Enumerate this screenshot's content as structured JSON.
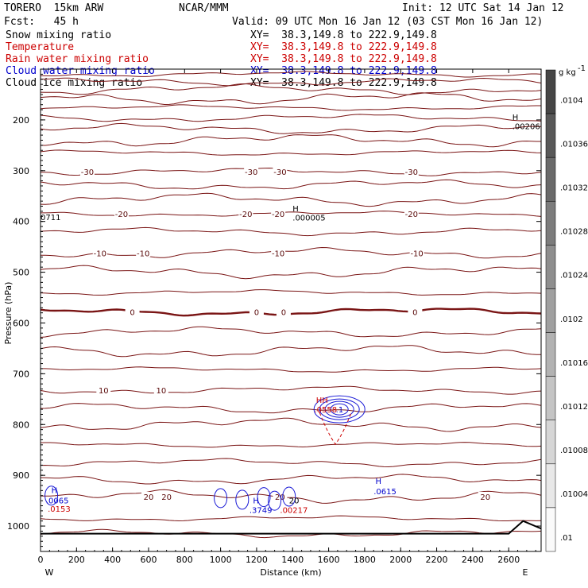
{
  "header": {
    "model": "TORERO  15km ARW",
    "org": "NCAR/MMM",
    "init": "Init: 12 UTC Sat 14 Jan 12",
    "fcst": "Fcst:   45 h",
    "valid": "Valid: 09 UTC Mon 16 Jan 12 (03 CST Mon 16 Jan 12)"
  },
  "fields": [
    {
      "name": "Snow mixing ratio",
      "xy": "XY=  38.3,149.8 to 222.9,149.8",
      "color": "#000000"
    },
    {
      "name": "Temperature",
      "xy": "XY=  38.3,149.8 to 222.9,149.8",
      "color": "#cc0000"
    },
    {
      "name": "Rain water mixing ratio",
      "xy": "XY=  38.3,149.8 to 222.9,149.8",
      "color": "#cc0000"
    },
    {
      "name": "Cloud water mixing ratio",
      "xy": "XY=  38.3,149.8 to 222.9,149.8",
      "color": "#0000cc"
    },
    {
      "name": "Cloud ice mixing ratio",
      "xy": "XY=  38.3,149.8 to 222.9,149.8",
      "color": "#000000"
    }
  ],
  "chart_data": {
    "type": "contour-cross-section",
    "xlabel": "Distance (km)",
    "ylabel": "Pressure (hPa)",
    "xlim": [
      0,
      2780
    ],
    "ylim": [
      1050,
      100
    ],
    "x_ticks": [
      0,
      200,
      400,
      600,
      800,
      1000,
      1200,
      1400,
      1600,
      1800,
      2000,
      2200,
      2400,
      2600
    ],
    "y_ticks": [
      200,
      300,
      400,
      500,
      600,
      700,
      800,
      900,
      1000
    ],
    "end_labels": {
      "left": "W",
      "right": "E"
    },
    "colorbar": {
      "unit": "g kg",
      "unit_exp": "-1",
      "labels": [
        ".0104",
        ".01036",
        ".01032",
        ".01028",
        ".01024",
        ".0102",
        ".01016",
        ".01012",
        ".01008",
        ".01004",
        ".01"
      ]
    },
    "temperature_isotherms": [
      {
        "value": -30,
        "labels_km": [
          260,
          1170,
          1330,
          2060
        ],
        "pressure": 302
      },
      {
        "value": -20,
        "labels_km": [
          450,
          1140,
          1320,
          2060
        ],
        "pressure": 385
      },
      {
        "value": -10,
        "labels_km": [
          330,
          570,
          1320,
          2090
        ],
        "pressure": 462
      },
      {
        "value": 0,
        "labels_km": [
          510,
          1200,
          1350,
          2080
        ],
        "pressure": 578
      },
      {
        "value": 10,
        "labels_km": [
          350,
          670
        ],
        "pressure": 732
      },
      {
        "value": 20,
        "labels_km": [
          600,
          700,
          1330,
          2470
        ],
        "pressure": 942
      }
    ],
    "annotations": [
      {
        "text": "H",
        "km": 2620,
        "pressure": 200,
        "color": "#000000"
      },
      {
        "text": ".00206",
        "km": 2620,
        "pressure": 218,
        "color": "#000000"
      },
      {
        "text": "H",
        "km": 1400,
        "pressure": 380,
        "color": "#000000"
      },
      {
        "text": ".000005",
        "km": 1400,
        "pressure": 398,
        "color": "#000000"
      },
      {
        "text": "0711",
        "km": 0,
        "pressure": 397,
        "color": "#000000"
      },
      {
        "text": "HH",
        "km": 1530,
        "pressure": 757,
        "color": "#cc0000"
      },
      {
        "text": ".0558",
        "km": 1520,
        "pressure": 776,
        "color": "#cc0000"
      },
      {
        "text": ".1",
        "km": 1640,
        "pressure": 776,
        "color": "#0000cc"
      },
      {
        "text": "H",
        "km": 60,
        "pressure": 935,
        "color": "#0000cc"
      },
      {
        "text": ".0065",
        "km": 30,
        "pressure": 955,
        "color": "#0000cc"
      },
      {
        "text": ".0153",
        "km": 40,
        "pressure": 972,
        "color": "#cc0000"
      },
      {
        "text": "H",
        "km": 1860,
        "pressure": 917,
        "color": "#0000cc"
      },
      {
        "text": ".0615",
        "km": 1850,
        "pressure": 937,
        "color": "#0000cc"
      },
      {
        "text": "H",
        "km": 1180,
        "pressure": 955,
        "color": "#0000cc"
      },
      {
        "text": ".3749",
        "km": 1160,
        "pressure": 974,
        "color": "#0000cc"
      },
      {
        "text": ".00217",
        "km": 1330,
        "pressure": 974,
        "color": "#cc0000"
      },
      {
        "text": "20",
        "km": 1380,
        "pressure": 955,
        "color": "#000000"
      }
    ]
  }
}
